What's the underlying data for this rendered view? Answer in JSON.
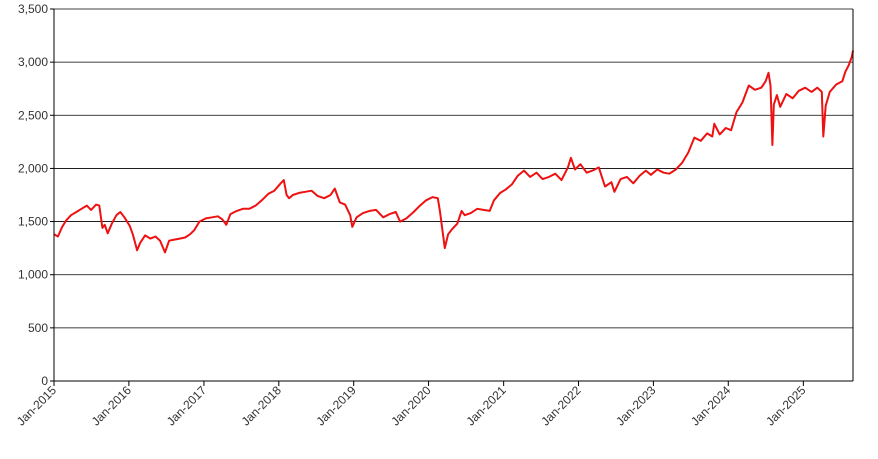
{
  "chart_data": {
    "type": "line",
    "title": "",
    "xlabel": "",
    "ylabel": "",
    "ylim": [
      0,
      3500
    ],
    "y_ticks": [
      0,
      500,
      1000,
      1500,
      2000,
      2500,
      3000,
      3500
    ],
    "y_tick_labels": [
      "0",
      "500",
      "1,000",
      "1,500",
      "2,000",
      "2,500",
      "3,000",
      "3,500"
    ],
    "x_range": [
      "2015-01-01",
      "2025-08-31"
    ],
    "x_ticks": [
      "2015-01-01",
      "2016-01-01",
      "2017-01-01",
      "2018-01-01",
      "2019-01-01",
      "2020-01-01",
      "2021-01-01",
      "2022-01-01",
      "2023-01-01",
      "2024-01-01",
      "2025-01-01"
    ],
    "x_tick_labels": [
      "Jan-2015",
      "Jan-2016",
      "Jan-2017",
      "Jan-2018",
      "Jan-2019",
      "Jan-2020",
      "Jan-2021",
      "Jan-2022",
      "Jan-2023",
      "Jan-2024",
      "Jan-2025"
    ],
    "grid": "horizontal",
    "legend": "none",
    "series": [
      {
        "color": "#ee1111",
        "points": [
          [
            "2015-01-01",
            1380
          ],
          [
            "2015-01-20",
            1360
          ],
          [
            "2015-02-10",
            1450
          ],
          [
            "2015-03-01",
            1510
          ],
          [
            "2015-03-25",
            1560
          ],
          [
            "2015-04-20",
            1590
          ],
          [
            "2015-05-15",
            1620
          ],
          [
            "2015-06-10",
            1650
          ],
          [
            "2015-07-01",
            1610
          ],
          [
            "2015-07-25",
            1660
          ],
          [
            "2015-08-10",
            1650
          ],
          [
            "2015-08-25",
            1440
          ],
          [
            "2015-09-05",
            1470
          ],
          [
            "2015-09-20",
            1390
          ],
          [
            "2015-10-10",
            1480
          ],
          [
            "2015-11-01",
            1560
          ],
          [
            "2015-11-20",
            1590
          ],
          [
            "2015-12-10",
            1540
          ],
          [
            "2016-01-05",
            1460
          ],
          [
            "2016-01-20",
            1380
          ],
          [
            "2016-02-10",
            1230
          ],
          [
            "2016-02-25",
            1300
          ],
          [
            "2016-03-20",
            1370
          ],
          [
            "2016-04-15",
            1340
          ],
          [
            "2016-05-10",
            1360
          ],
          [
            "2016-06-01",
            1320
          ],
          [
            "2016-06-25",
            1210
          ],
          [
            "2016-07-15",
            1320
          ],
          [
            "2016-08-10",
            1330
          ],
          [
            "2016-09-05",
            1340
          ],
          [
            "2016-10-01",
            1350
          ],
          [
            "2016-10-25",
            1380
          ],
          [
            "2016-11-15",
            1420
          ],
          [
            "2016-12-10",
            1500
          ],
          [
            "2017-01-10",
            1530
          ],
          [
            "2017-02-10",
            1540
          ],
          [
            "2017-03-10",
            1550
          ],
          [
            "2017-04-01",
            1520
          ],
          [
            "2017-04-20",
            1470
          ],
          [
            "2017-05-10",
            1570
          ],
          [
            "2017-06-10",
            1600
          ],
          [
            "2017-07-10",
            1620
          ],
          [
            "2017-08-10",
            1620
          ],
          [
            "2017-09-10",
            1650
          ],
          [
            "2017-10-10",
            1700
          ],
          [
            "2017-11-10",
            1760
          ],
          [
            "2017-12-10",
            1790
          ],
          [
            "2018-01-10",
            1860
          ],
          [
            "2018-01-25",
            1890
          ],
          [
            "2018-02-08",
            1750
          ],
          [
            "2018-02-20",
            1720
          ],
          [
            "2018-03-10",
            1750
          ],
          [
            "2018-04-10",
            1770
          ],
          [
            "2018-05-10",
            1780
          ],
          [
            "2018-06-10",
            1790
          ],
          [
            "2018-07-10",
            1740
          ],
          [
            "2018-08-10",
            1720
          ],
          [
            "2018-09-10",
            1750
          ],
          [
            "2018-10-01",
            1810
          ],
          [
            "2018-10-25",
            1680
          ],
          [
            "2018-11-20",
            1660
          ],
          [
            "2018-12-15",
            1560
          ],
          [
            "2018-12-25",
            1450
          ],
          [
            "2019-01-15",
            1540
          ],
          [
            "2019-02-15",
            1580
          ],
          [
            "2019-03-20",
            1600
          ],
          [
            "2019-04-20",
            1610
          ],
          [
            "2019-05-25",
            1540
          ],
          [
            "2019-06-25",
            1570
          ],
          [
            "2019-07-25",
            1590
          ],
          [
            "2019-08-15",
            1500
          ],
          [
            "2019-09-15",
            1530
          ],
          [
            "2019-10-20",
            1590
          ],
          [
            "2019-11-20",
            1650
          ],
          [
            "2019-12-20",
            1700
          ],
          [
            "2020-01-20",
            1730
          ],
          [
            "2020-02-15",
            1720
          ],
          [
            "2020-02-25",
            1600
          ],
          [
            "2020-03-10",
            1400
          ],
          [
            "2020-03-20",
            1250
          ],
          [
            "2020-04-05",
            1380
          ],
          [
            "2020-04-25",
            1430
          ],
          [
            "2020-05-20",
            1480
          ],
          [
            "2020-06-10",
            1600
          ],
          [
            "2020-06-25",
            1560
          ],
          [
            "2020-07-25",
            1580
          ],
          [
            "2020-08-25",
            1620
          ],
          [
            "2020-09-25",
            1610
          ],
          [
            "2020-10-25",
            1600
          ],
          [
            "2020-11-15",
            1700
          ],
          [
            "2020-12-15",
            1770
          ],
          [
            "2021-01-10",
            1800
          ],
          [
            "2021-02-10",
            1850
          ],
          [
            "2021-03-10",
            1930
          ],
          [
            "2021-04-10",
            1980
          ],
          [
            "2021-05-10",
            1920
          ],
          [
            "2021-06-10",
            1960
          ],
          [
            "2021-07-10",
            1900
          ],
          [
            "2021-08-10",
            1920
          ],
          [
            "2021-09-10",
            1950
          ],
          [
            "2021-10-10",
            1890
          ],
          [
            "2021-11-10",
            2010
          ],
          [
            "2021-11-25",
            2100
          ],
          [
            "2021-12-15",
            1990
          ],
          [
            "2022-01-10",
            2040
          ],
          [
            "2022-02-10",
            1960
          ],
          [
            "2022-03-10",
            1980
          ],
          [
            "2022-04-10",
            2010
          ],
          [
            "2022-05-10",
            1830
          ],
          [
            "2022-06-10",
            1870
          ],
          [
            "2022-06-25",
            1780
          ],
          [
            "2022-07-25",
            1900
          ],
          [
            "2022-08-25",
            1920
          ],
          [
            "2022-09-25",
            1860
          ],
          [
            "2022-10-25",
            1930
          ],
          [
            "2022-11-25",
            1980
          ],
          [
            "2022-12-20",
            1940
          ],
          [
            "2023-01-20",
            1990
          ],
          [
            "2023-02-20",
            1960
          ],
          [
            "2023-03-20",
            1950
          ],
          [
            "2023-04-20",
            1990
          ],
          [
            "2023-05-20",
            2050
          ],
          [
            "2023-06-20",
            2150
          ],
          [
            "2023-07-20",
            2290
          ],
          [
            "2023-08-20",
            2260
          ],
          [
            "2023-09-20",
            2330
          ],
          [
            "2023-10-15",
            2300
          ],
          [
            "2023-10-25",
            2420
          ],
          [
            "2023-11-20",
            2320
          ],
          [
            "2023-12-20",
            2380
          ],
          [
            "2024-01-15",
            2360
          ],
          [
            "2024-02-10",
            2530
          ],
          [
            "2024-03-10",
            2620
          ],
          [
            "2024-04-10",
            2780
          ],
          [
            "2024-05-10",
            2740
          ],
          [
            "2024-06-10",
            2760
          ],
          [
            "2024-07-01",
            2820
          ],
          [
            "2024-07-15",
            2900
          ],
          [
            "2024-07-25",
            2780
          ],
          [
            "2024-08-03",
            2220
          ],
          [
            "2024-08-10",
            2600
          ],
          [
            "2024-08-25",
            2690
          ],
          [
            "2024-09-10",
            2580
          ],
          [
            "2024-10-10",
            2700
          ],
          [
            "2024-11-10",
            2660
          ],
          [
            "2024-12-10",
            2730
          ],
          [
            "2025-01-10",
            2760
          ],
          [
            "2025-02-10",
            2720
          ],
          [
            "2025-03-10",
            2760
          ],
          [
            "2025-04-01",
            2720
          ],
          [
            "2025-04-08",
            2300
          ],
          [
            "2025-04-20",
            2590
          ],
          [
            "2025-05-10",
            2720
          ],
          [
            "2025-06-10",
            2790
          ],
          [
            "2025-07-10",
            2820
          ],
          [
            "2025-07-25",
            2910
          ],
          [
            "2025-08-10",
            2970
          ],
          [
            "2025-08-25",
            3050
          ],
          [
            "2025-08-31",
            3110
          ]
        ]
      }
    ]
  }
}
